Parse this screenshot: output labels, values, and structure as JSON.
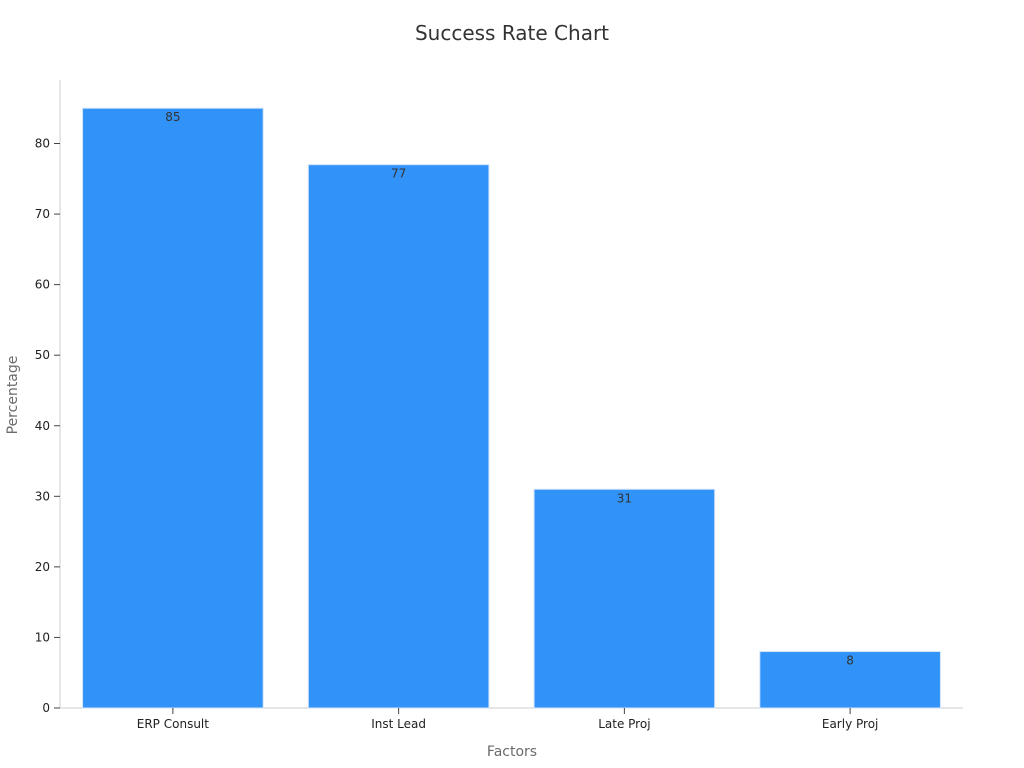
{
  "chart_data": {
    "type": "bar",
    "title": "Success Rate Chart",
    "xlabel": "Factors",
    "ylabel": "Percentage",
    "categories": [
      "ERP Consult",
      "Inst Lead",
      "Late Proj",
      "Early Proj"
    ],
    "values": [
      85,
      77,
      31,
      8
    ],
    "ylim": [
      0,
      89
    ],
    "yticks": [
      0,
      10,
      20,
      30,
      40,
      50,
      60,
      70,
      80
    ],
    "grid": false,
    "legend": "none",
    "bar_color": "#3192f8",
    "bar_edge_color": "#cfe3fa"
  }
}
